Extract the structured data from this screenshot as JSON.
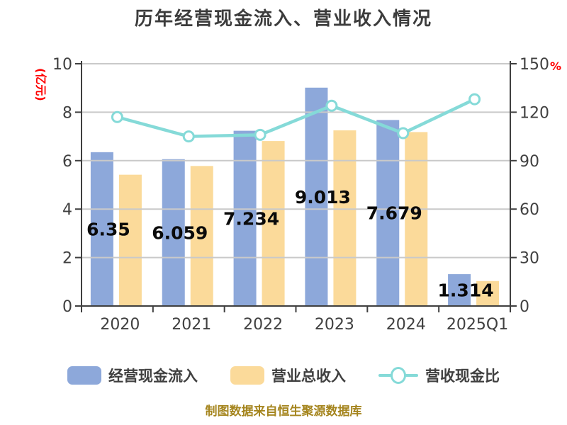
{
  "title": "历年经营现金流入、营业收入情况",
  "footer": "制图数据来自恒生聚源数据库",
  "colors": {
    "bar_blue": "#8DA8DA",
    "bar_yellow": "#FBDA9A",
    "line_teal": "#85DAD8",
    "axis": "#3F3F3F",
    "grid": "#C9C9C9",
    "text": "#404040",
    "axis_name_red": "#FF0000",
    "footer_gold": "#A5851E",
    "label_black": "#0A0A0A"
  },
  "chart_data": {
    "type": "bar",
    "title": "历年经营现金流入、营业收入情况",
    "categories": [
      "2020",
      "2021",
      "2022",
      "2023",
      "2024",
      "2025Q1"
    ],
    "series": [
      {
        "name": "经营现金流入",
        "type": "bar",
        "axis": "left",
        "color": "#8DA8DA",
        "values": [
          6.35,
          6.059,
          7.234,
          9.013,
          7.679,
          1.314
        ],
        "labels": [
          "6.35",
          "6.059",
          "7.234",
          "9.013",
          "7.679",
          "1.314"
        ]
      },
      {
        "name": "营业总收入",
        "type": "bar",
        "axis": "left",
        "color": "#FBDA9A",
        "values": [
          5.42,
          5.78,
          6.81,
          7.25,
          7.18,
          1.03
        ],
        "labels": []
      },
      {
        "name": "营收现金比",
        "type": "line",
        "axis": "right",
        "color": "#85DAD8",
        "values": [
          117,
          105,
          106,
          124,
          107,
          128
        ],
        "labels": []
      }
    ],
    "left_axis": {
      "name": "(亿元)",
      "min": 0,
      "max": 10,
      "ticks": [
        0,
        2,
        4,
        6,
        8,
        10
      ]
    },
    "right_axis": {
      "name": "%",
      "min": 0,
      "max": 150,
      "ticks": [
        0,
        30,
        60,
        90,
        120,
        150
      ]
    },
    "legend": [
      {
        "label": "经营现金流入",
        "marker": "bar",
        "color": "#8DA8DA"
      },
      {
        "label": "营业总收入",
        "marker": "bar",
        "color": "#FBDA9A"
      },
      {
        "label": "营收现金比",
        "marker": "line",
        "color": "#85DAD8"
      }
    ],
    "legend_position": "bottom",
    "grid": true
  }
}
